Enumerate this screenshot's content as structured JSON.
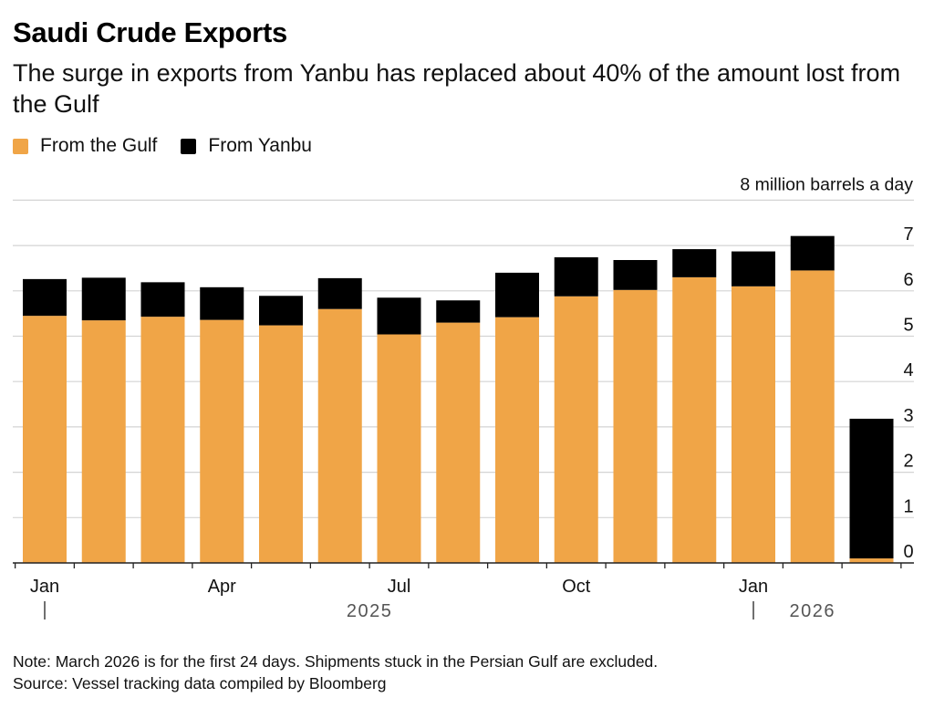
{
  "title": "Saudi Crude Exports",
  "subtitle": "The surge in exports from Yanbu has replaced about 40% of the amount lost from the Gulf",
  "legend": [
    {
      "label": "From the Gulf",
      "color": "#F0A547"
    },
    {
      "label": "From Yanbu",
      "color": "#000000"
    }
  ],
  "note": "Note: March 2026 is for the first 24 days. Shipments stuck in the Persian Gulf are excluded.",
  "source": "Source: Vessel tracking data compiled by Bloomberg",
  "chart_data": {
    "type": "bar",
    "stacked": true,
    "title": "Saudi Crude Exports",
    "ylabel": "8 million barrels a day",
    "ylim": [
      0,
      8
    ],
    "yticks": [
      0,
      1,
      2,
      3,
      4,
      5,
      6,
      7
    ],
    "categories": [
      "Jan 2025",
      "Feb 2025",
      "Mar 2025",
      "Apr 2025",
      "May 2025",
      "Jun 2025",
      "Jul 2025",
      "Aug 2025",
      "Sep 2025",
      "Oct 2025",
      "Nov 2025",
      "Dec 2025",
      "Jan 2026",
      "Feb 2026",
      "Mar 2026"
    ],
    "x_tick_labels": [
      {
        "label": "Jan",
        "index": 0
      },
      {
        "label": "Apr",
        "index": 3
      },
      {
        "label": "Jul",
        "index": 6
      },
      {
        "label": "Oct",
        "index": 9
      },
      {
        "label": "Jan",
        "index": 12
      }
    ],
    "year_labels": [
      {
        "label": "2025",
        "from": 0,
        "to": 11
      },
      {
        "label": "2026",
        "from": 12,
        "to": 14
      }
    ],
    "series": [
      {
        "name": "From the Gulf",
        "color": "#F0A547",
        "values": [
          5.45,
          5.35,
          5.43,
          5.36,
          5.24,
          5.6,
          5.04,
          5.3,
          5.42,
          5.88,
          6.02,
          6.3,
          6.1,
          6.45,
          0.1
        ]
      },
      {
        "name": "From Yanbu",
        "color": "#000000",
        "values": [
          0.81,
          0.94,
          0.76,
          0.72,
          0.65,
          0.68,
          0.81,
          0.49,
          0.98,
          0.86,
          0.66,
          0.62,
          0.77,
          0.76,
          3.08
        ]
      }
    ]
  }
}
